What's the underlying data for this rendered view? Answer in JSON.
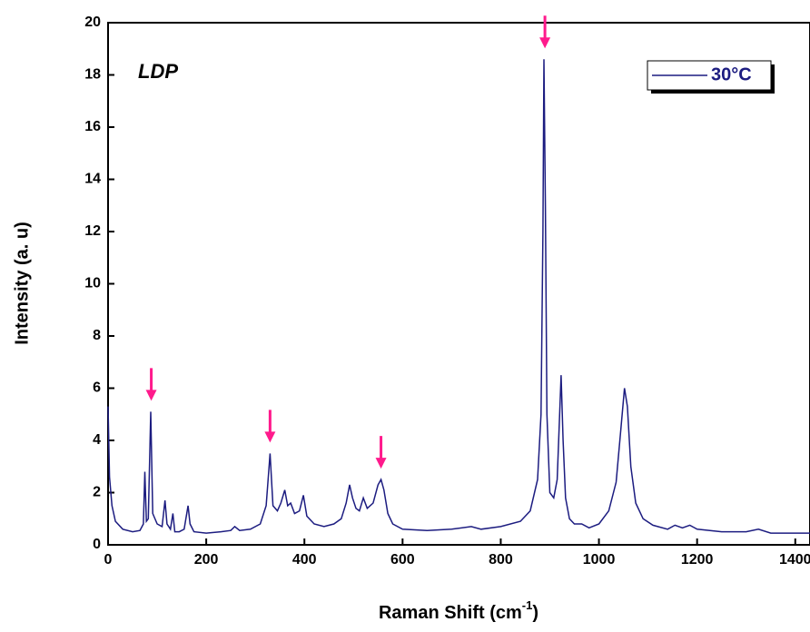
{
  "chart_data": {
    "type": "line",
    "annotation": "LDP",
    "xlabel": {
      "text": "Raman Shift (cm",
      "superscript": "-1",
      "suffix": ")"
    },
    "ylabel": "Intensity (a. u)",
    "x": [
      0,
      3,
      8,
      15,
      30,
      50,
      65,
      72,
      75,
      78,
      82,
      87,
      91,
      100,
      110,
      116,
      120,
      127,
      132,
      136,
      145,
      155,
      163,
      167,
      175,
      200,
      230,
      250,
      258,
      268,
      290,
      310,
      322,
      330,
      336,
      345,
      352,
      360,
      366,
      372,
      380,
      390,
      398,
      405,
      420,
      440,
      460,
      475,
      485,
      492,
      498,
      505,
      512,
      520,
      528,
      540,
      550,
      556,
      562,
      570,
      580,
      600,
      650,
      700,
      740,
      760,
      800,
      840,
      860,
      875,
      882,
      886,
      888,
      891,
      894,
      900,
      908,
      915,
      920,
      923,
      927,
      932,
      940,
      950,
      965,
      980,
      1000,
      1020,
      1035,
      1045,
      1052,
      1058,
      1065,
      1075,
      1090,
      1110,
      1140,
      1155,
      1170,
      1185,
      1200,
      1250,
      1300,
      1325,
      1350,
      1400,
      1430
    ],
    "series": [
      {
        "name": "30°C",
        "color": "#1c1c80",
        "values": [
          5.3,
          2.6,
          1.5,
          0.9,
          0.6,
          0.5,
          0.55,
          0.8,
          2.8,
          0.9,
          1.0,
          5.1,
          1.2,
          0.8,
          0.7,
          1.7,
          0.8,
          0.6,
          1.2,
          0.5,
          0.5,
          0.6,
          1.5,
          0.8,
          0.5,
          0.45,
          0.5,
          0.55,
          0.7,
          0.55,
          0.6,
          0.8,
          1.5,
          3.5,
          1.5,
          1.3,
          1.6,
          2.1,
          1.5,
          1.6,
          1.2,
          1.3,
          1.9,
          1.1,
          0.8,
          0.7,
          0.8,
          1.0,
          1.6,
          2.3,
          1.8,
          1.4,
          1.3,
          1.8,
          1.4,
          1.6,
          2.3,
          2.5,
          2.1,
          1.2,
          0.8,
          0.6,
          0.55,
          0.6,
          0.7,
          0.6,
          0.7,
          0.9,
          1.3,
          2.5,
          5,
          12,
          18.6,
          13,
          5,
          2,
          1.8,
          2.5,
          5,
          6.5,
          4,
          1.8,
          1.0,
          0.8,
          0.8,
          0.65,
          0.8,
          1.3,
          2.4,
          4.5,
          6.0,
          5.3,
          3,
          1.6,
          1.0,
          0.75,
          0.6,
          0.75,
          0.65,
          0.75,
          0.6,
          0.5,
          0.5,
          0.6,
          0.45,
          0.45,
          0.45
        ]
      }
    ],
    "arrows": [
      {
        "x": 88,
        "y": 5.1
      },
      {
        "x": 330,
        "y": 3.5
      },
      {
        "x": 556,
        "y": 2.5
      },
      {
        "x": 890,
        "y": 18.6
      }
    ],
    "arrow_color": "#ff1a8c",
    "xlim": [
      0,
      1430
    ],
    "ylim": [
      0,
      20
    ],
    "xticks": [
      0,
      200,
      400,
      600,
      800,
      1000,
      1200,
      1400
    ],
    "yticks": [
      0,
      2,
      4,
      6,
      8,
      10,
      12,
      14,
      16,
      18,
      20
    ],
    "legend": "top-right"
  }
}
